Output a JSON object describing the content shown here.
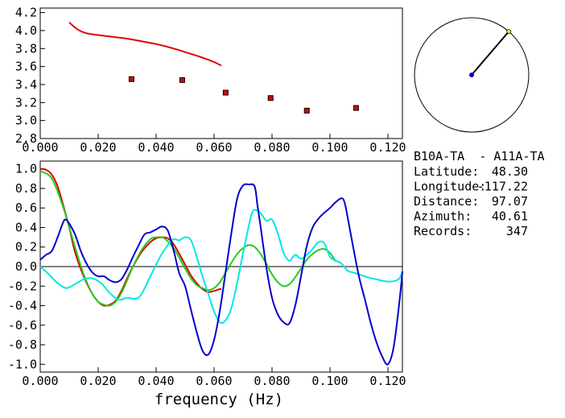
{
  "chart_data": [
    {
      "type": "scatter",
      "panel": "top",
      "xlim": [
        0.0,
        0.125
      ],
      "ylim": [
        2.8,
        4.25
      ],
      "xticks": [
        "0.000",
        "0.020",
        "0.040",
        "0.060",
        "0.080",
        "0.100",
        "0.120"
      ],
      "yticks": [
        "2.8",
        "3.0",
        "3.2",
        "3.4",
        "3.6",
        "3.8",
        "4.0",
        "4.2"
      ],
      "grid": false,
      "series": [
        {
          "kind": "line",
          "color": "#dd0000",
          "x": [
            0.01,
            0.013,
            0.016,
            0.02,
            0.025,
            0.03,
            0.035,
            0.04,
            0.045,
            0.05,
            0.055,
            0.06,
            0.0625
          ],
          "y": [
            4.09,
            4.01,
            3.97,
            3.95,
            3.93,
            3.91,
            3.88,
            3.85,
            3.81,
            3.76,
            3.71,
            3.65,
            3.61
          ]
        },
        {
          "kind": "markers",
          "color": "#dd0000",
          "x": [
            0.0315,
            0.049,
            0.064,
            0.0795,
            0.092,
            0.109
          ],
          "y": [
            3.46,
            3.45,
            3.31,
            3.25,
            3.11,
            3.14
          ]
        }
      ]
    },
    {
      "type": "line",
      "panel": "bottom",
      "xlim": [
        0.0,
        0.125
      ],
      "ylim": [
        -1.08,
        1.08
      ],
      "xticks": [
        "0.000",
        "0.020",
        "0.040",
        "0.060",
        "0.080",
        "0.100",
        "0.120"
      ],
      "yticks": [
        "-1.0",
        "-0.8",
        "-0.6",
        "-0.4",
        "-0.2",
        "0.0",
        "0.2",
        "0.4",
        "0.6",
        "0.8",
        "1.0"
      ],
      "xlabel": "frequency (Hz)",
      "zero_line": true,
      "grid": false,
      "series": [
        {
          "color": "#dd0000",
          "x": [
            0.0,
            0.002,
            0.004,
            0.006,
            0.008,
            0.01,
            0.012,
            0.015,
            0.018,
            0.02,
            0.022,
            0.024,
            0.026,
            0.028,
            0.03,
            0.032,
            0.035,
            0.038,
            0.04,
            0.042,
            0.044,
            0.046,
            0.048,
            0.05,
            0.052,
            0.054,
            0.056,
            0.058,
            0.06,
            0.062,
            0.0625
          ],
          "y": [
            1.0,
            0.99,
            0.94,
            0.82,
            0.62,
            0.4,
            0.15,
            -0.1,
            -0.28,
            -0.36,
            -0.4,
            -0.39,
            -0.35,
            -0.25,
            -0.12,
            0.0,
            0.15,
            0.25,
            0.29,
            0.3,
            0.29,
            0.23,
            0.13,
            0.02,
            -0.09,
            -0.17,
            -0.23,
            -0.26,
            -0.25,
            -0.23,
            -0.23
          ]
        },
        {
          "color": "#22cc22",
          "x": [
            0.0,
            0.004,
            0.008,
            0.012,
            0.015,
            0.018,
            0.02,
            0.022,
            0.024,
            0.026,
            0.028,
            0.03,
            0.032,
            0.035,
            0.038,
            0.04,
            0.042,
            0.044,
            0.046,
            0.048,
            0.05,
            0.052,
            0.054,
            0.056,
            0.058,
            0.06,
            0.062,
            0.064,
            0.066,
            0.068,
            0.07,
            0.072,
            0.074,
            0.076,
            0.078,
            0.08,
            0.082,
            0.084,
            0.086,
            0.088,
            0.09,
            0.092,
            0.094,
            0.096,
            0.098,
            0.1,
            0.102
          ],
          "y": [
            0.98,
            0.9,
            0.6,
            0.2,
            -0.08,
            -0.28,
            -0.36,
            -0.39,
            -0.4,
            -0.36,
            -0.27,
            -0.14,
            0.0,
            0.17,
            0.28,
            0.3,
            0.3,
            0.26,
            0.19,
            0.09,
            -0.02,
            -0.12,
            -0.19,
            -0.22,
            -0.24,
            -0.22,
            -0.16,
            -0.06,
            0.04,
            0.13,
            0.19,
            0.22,
            0.2,
            0.13,
            0.03,
            -0.08,
            -0.16,
            -0.2,
            -0.18,
            -0.11,
            -0.02,
            0.07,
            0.13,
            0.17,
            0.18,
            0.14,
            0.05
          ]
        },
        {
          "color": "#00e6e6",
          "x": [
            0.0,
            0.003,
            0.006,
            0.009,
            0.012,
            0.015,
            0.018,
            0.021,
            0.024,
            0.027,
            0.03,
            0.033,
            0.035,
            0.038,
            0.041,
            0.044,
            0.046,
            0.048,
            0.05,
            0.052,
            0.054,
            0.056,
            0.058,
            0.06,
            0.062,
            0.064,
            0.066,
            0.068,
            0.07,
            0.072,
            0.073,
            0.074,
            0.076,
            0.078,
            0.08,
            0.082,
            0.084,
            0.086,
            0.088,
            0.09,
            0.092,
            0.094,
            0.096,
            0.098,
            0.1,
            0.102,
            0.104,
            0.106,
            0.108,
            0.11,
            0.113,
            0.116,
            0.119,
            0.122,
            0.124,
            0.125
          ],
          "y": [
            0.0,
            -0.08,
            -0.17,
            -0.22,
            -0.18,
            -0.13,
            -0.12,
            -0.17,
            -0.27,
            -0.34,
            -0.32,
            -0.33,
            -0.28,
            -0.1,
            0.08,
            0.22,
            0.28,
            0.27,
            0.3,
            0.27,
            0.1,
            -0.1,
            -0.28,
            -0.46,
            -0.57,
            -0.55,
            -0.42,
            -0.16,
            0.14,
            0.42,
            0.54,
            0.58,
            0.55,
            0.47,
            0.48,
            0.34,
            0.14,
            0.06,
            0.12,
            0.08,
            0.12,
            0.18,
            0.25,
            0.24,
            0.1,
            0.06,
            0.03,
            -0.04,
            -0.06,
            -0.08,
            -0.11,
            -0.13,
            -0.15,
            -0.15,
            -0.12,
            -0.05
          ]
        },
        {
          "color": "#0000cc",
          "x": [
            0.0,
            0.002,
            0.004,
            0.006,
            0.008,
            0.009,
            0.01,
            0.012,
            0.014,
            0.016,
            0.018,
            0.02,
            0.022,
            0.024,
            0.026,
            0.028,
            0.03,
            0.032,
            0.034,
            0.036,
            0.038,
            0.04,
            0.042,
            0.044,
            0.046,
            0.048,
            0.05,
            0.052,
            0.054,
            0.056,
            0.058,
            0.06,
            0.062,
            0.064,
            0.066,
            0.068,
            0.07,
            0.072,
            0.074,
            0.075,
            0.076,
            0.078,
            0.08,
            0.082,
            0.084,
            0.086,
            0.088,
            0.09,
            0.092,
            0.094,
            0.096,
            0.098,
            0.1,
            0.102,
            0.104,
            0.105,
            0.106,
            0.108,
            0.11,
            0.112,
            0.114,
            0.116,
            0.118,
            0.12,
            0.122,
            0.124,
            0.125
          ],
          "y": [
            0.07,
            0.12,
            0.16,
            0.3,
            0.46,
            0.48,
            0.44,
            0.33,
            0.16,
            0.03,
            -0.06,
            -0.1,
            -0.1,
            -0.14,
            -0.16,
            -0.13,
            -0.03,
            0.1,
            0.22,
            0.33,
            0.35,
            0.38,
            0.41,
            0.37,
            0.17,
            -0.07,
            -0.2,
            -0.44,
            -0.67,
            -0.86,
            -0.9,
            -0.75,
            -0.45,
            -0.05,
            0.35,
            0.7,
            0.83,
            0.84,
            0.82,
            0.62,
            0.42,
            0.0,
            -0.32,
            -0.49,
            -0.57,
            -0.58,
            -0.4,
            -0.1,
            0.21,
            0.4,
            0.49,
            0.55,
            0.6,
            0.66,
            0.7,
            0.66,
            0.52,
            0.2,
            -0.1,
            -0.33,
            -0.57,
            -0.77,
            -0.92,
            -1.0,
            -0.82,
            -0.35,
            -0.05
          ]
        }
      ]
    }
  ],
  "inset": {
    "kind": "azimuth-dial",
    "azimuth_deg": 40.61,
    "circle_color": "#000000",
    "center_dot_color": "#0000cc",
    "tip_dot_color": "#ffff00"
  },
  "info": {
    "station_pair": "B10A-TA  - A11A-TA",
    "rows": [
      {
        "label": "Latitude:",
        "value": "48.30"
      },
      {
        "label": "Longitude:",
        "value": "-117.22"
      },
      {
        "label": "Distance:",
        "value": "97.07"
      },
      {
        "label": "Azimuth:",
        "value": "40.61"
      },
      {
        "label": "Records:",
        "value": "347"
      }
    ]
  }
}
